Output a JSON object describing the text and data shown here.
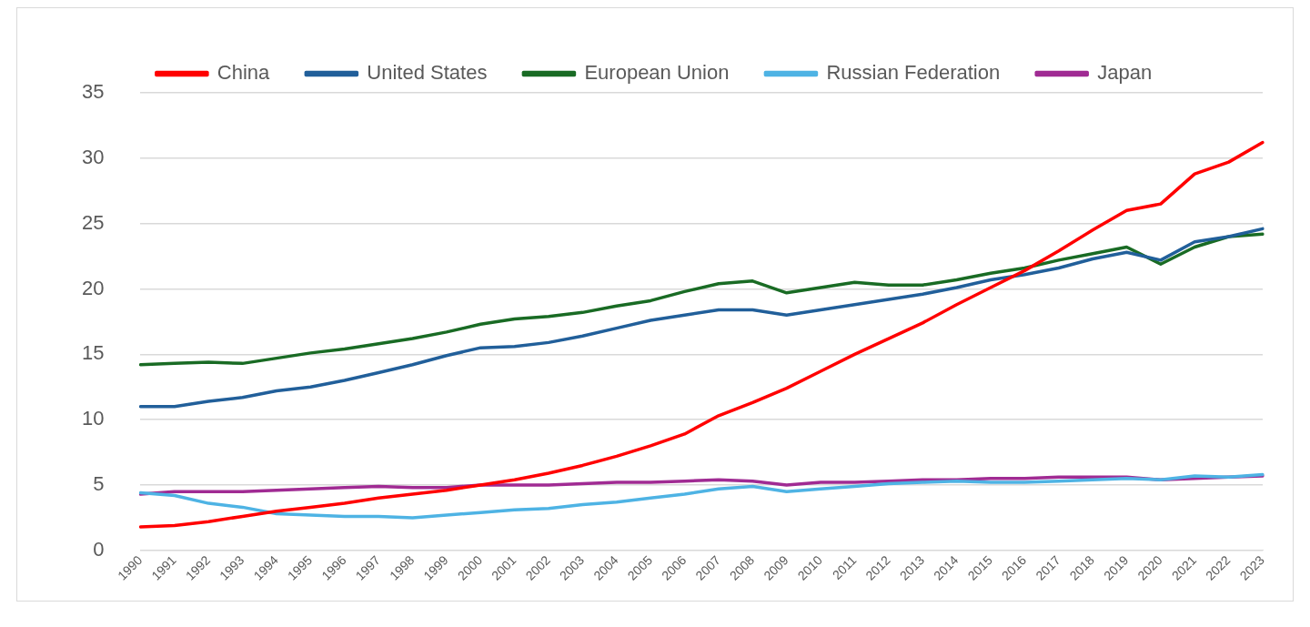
{
  "chart_data": {
    "type": "line",
    "categories": [
      "1990",
      "1991",
      "1992",
      "1993",
      "1994",
      "1995",
      "1996",
      "1997",
      "1998",
      "1999",
      "2000",
      "2001",
      "2002",
      "2003",
      "2004",
      "2005",
      "2006",
      "2007",
      "2008",
      "2009",
      "2010",
      "2011",
      "2012",
      "2013",
      "2014",
      "2015",
      "2016",
      "2017",
      "2018",
      "2019",
      "2020",
      "2021",
      "2022",
      "2023"
    ],
    "series": [
      {
        "name": "China",
        "color": "#ff0000",
        "values": [
          1.8,
          1.9,
          2.2,
          2.6,
          3.0,
          3.3,
          3.6,
          4.0,
          4.3,
          4.6,
          5.0,
          5.4,
          5.9,
          6.5,
          7.2,
          8.0,
          8.9,
          10.3,
          11.3,
          12.4,
          13.7,
          15.0,
          16.2,
          17.4,
          18.8,
          20.1,
          21.4,
          22.9,
          24.5,
          26.0,
          26.5,
          28.8,
          29.7,
          31.2
        ]
      },
      {
        "name": "United States",
        "color": "#215f9a",
        "values": [
          11.0,
          11.0,
          11.4,
          11.7,
          12.2,
          12.5,
          13.0,
          13.6,
          14.2,
          14.9,
          15.5,
          15.6,
          15.9,
          16.4,
          17.0,
          17.6,
          18.0,
          18.4,
          18.4,
          18.0,
          18.4,
          18.8,
          19.2,
          19.6,
          20.1,
          20.7,
          21.1,
          21.6,
          22.3,
          22.8,
          22.2,
          23.6,
          24.0,
          24.6
        ]
      },
      {
        "name": "European Union",
        "color": "#196b24",
        "values": [
          14.2,
          14.3,
          14.4,
          14.3,
          14.7,
          15.1,
          15.4,
          15.8,
          16.2,
          16.7,
          17.3,
          17.7,
          17.9,
          18.2,
          18.7,
          19.1,
          19.8,
          20.4,
          20.6,
          19.7,
          20.1,
          20.5,
          20.3,
          20.3,
          20.7,
          21.2,
          21.6,
          22.2,
          22.7,
          23.2,
          21.9,
          23.2,
          24.0,
          24.2
        ]
      },
      {
        "name": "Russian Federation",
        "color": "#4eb3e4",
        "values": [
          4.4,
          4.2,
          3.6,
          3.3,
          2.8,
          2.7,
          2.6,
          2.6,
          2.5,
          2.7,
          2.9,
          3.1,
          3.2,
          3.5,
          3.7,
          4.0,
          4.3,
          4.7,
          4.9,
          4.5,
          4.7,
          4.9,
          5.1,
          5.2,
          5.3,
          5.2,
          5.2,
          5.3,
          5.4,
          5.5,
          5.4,
          5.7,
          5.6,
          5.8
        ]
      },
      {
        "name": "Japan",
        "color": "#a02b93",
        "values": [
          4.3,
          4.5,
          4.5,
          4.5,
          4.6,
          4.7,
          4.8,
          4.9,
          4.8,
          4.8,
          5.0,
          5.0,
          5.0,
          5.1,
          5.2,
          5.2,
          5.3,
          5.4,
          5.3,
          5.0,
          5.2,
          5.2,
          5.3,
          5.4,
          5.4,
          5.5,
          5.5,
          5.6,
          5.6,
          5.6,
          5.4,
          5.5,
          5.6,
          5.7
        ]
      }
    ],
    "ylim": [
      0,
      35
    ],
    "yticks": [
      0,
      5,
      10,
      15,
      20,
      25,
      30,
      35
    ],
    "grid": "y",
    "legend": "top",
    "marker": "none",
    "line_style": "solid"
  }
}
